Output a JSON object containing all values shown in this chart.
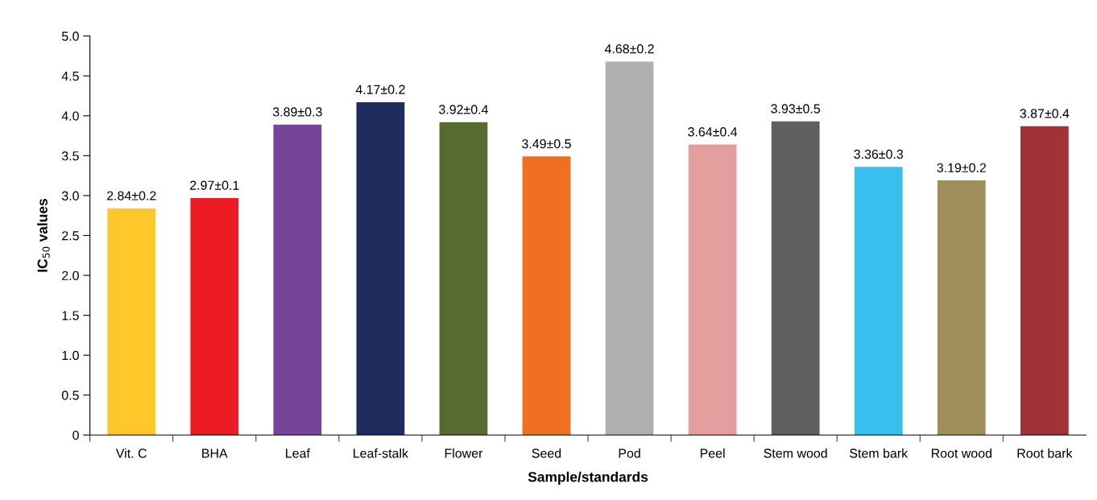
{
  "chart_data": {
    "type": "bar",
    "xlabel": "Sample/standards",
    "ylabel": "IC$_{50}$ values",
    "categories": [
      "Vit. C",
      "BHA",
      "Leaf",
      "Leaf-stalk",
      "Flower",
      "Seed",
      "Pod",
      "Peel",
      "Stem wood",
      "Stem bark",
      "Root wood",
      "Root bark"
    ],
    "values": [
      2.84,
      2.97,
      3.89,
      4.17,
      3.92,
      3.49,
      4.68,
      3.64,
      3.93,
      3.36,
      3.19,
      3.87
    ],
    "colors": [
      "#fec72a",
      "#ed1c24",
      "#77449a",
      "#1f2d5e",
      "#556b30",
      "#f07023",
      "#afafaf",
      "#e59e9e",
      "#5f5f5f",
      "#38bfee",
      "#9f8f5c",
      "#9f3337"
    ],
    "value_labels": [
      "2.84±0.2",
      "2.97±0.1",
      "3.89±0.3",
      "4.17±0.2",
      "3.92±0.4",
      "3.49±0.5",
      "4.68±0.2",
      "3.64±0.4",
      "3.93±0.5",
      "3.36±0.3",
      "3.19±0.2",
      "3.87±0.4"
    ],
    "ylim": [
      0,
      5
    ],
    "yticks": [
      0,
      0.5,
      {
        "value": 1,
        "label": "1.0"
      },
      1.5,
      {
        "value": 2,
        "label": "2.0"
      },
      2.5,
      {
        "value": 3,
        "label": "3.0"
      },
      3.5,
      {
        "value": 4,
        "label": "4.0"
      },
      4.5,
      {
        "value": 5,
        "label": "5.0"
      }
    ],
    "grid": false,
    "legend": false
  }
}
